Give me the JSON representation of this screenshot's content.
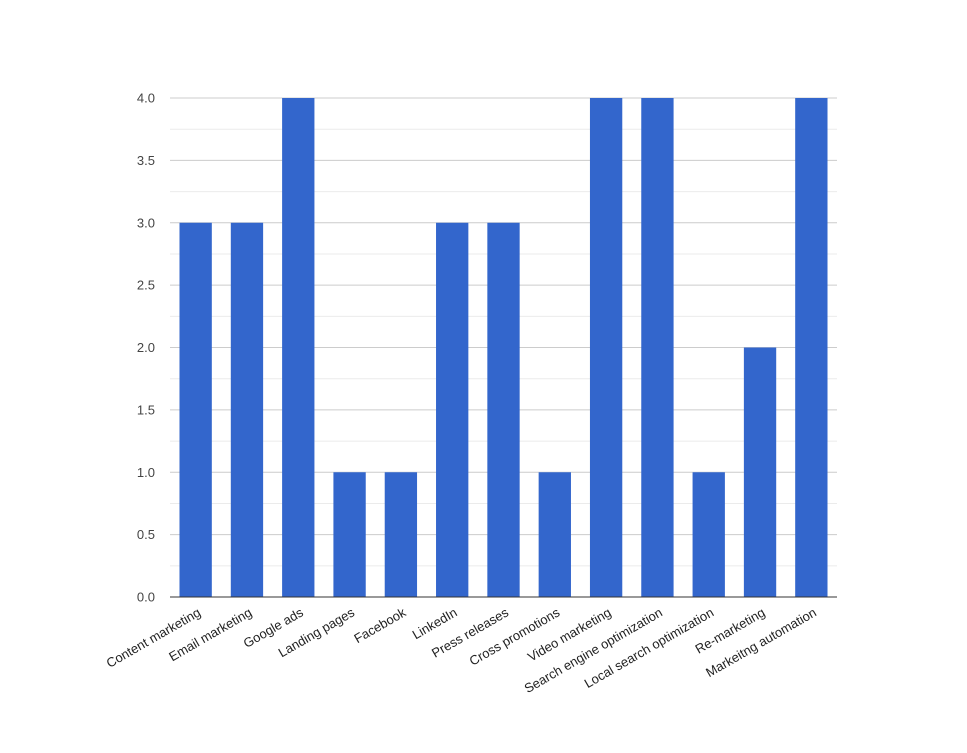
{
  "chart_data": {
    "type": "bar",
    "categories": [
      "Content marketing",
      "Email marketing",
      "Google ads",
      "Landing pages",
      "Facebook",
      "LinkedIn",
      "Press releases",
      "Cross promotions",
      "Video marketing",
      "Search engine optimization",
      "Local search optimization",
      "Re-marketing",
      "Markeitng automation"
    ],
    "values": [
      3,
      3,
      4,
      1,
      1,
      3,
      3,
      1,
      4,
      4,
      1,
      2,
      4
    ],
    "ylim": [
      0,
      4
    ],
    "yticks": [
      "0.0",
      "0.5",
      "1.0",
      "1.5",
      "2.0",
      "2.5",
      "3.0",
      "3.5",
      "4.0"
    ],
    "grid": true,
    "legend": "none",
    "bar_color": "#3366cc",
    "grid_color": "#cccccc",
    "minor_grid_color": "#ebebeb",
    "axis_color": "#333333"
  }
}
